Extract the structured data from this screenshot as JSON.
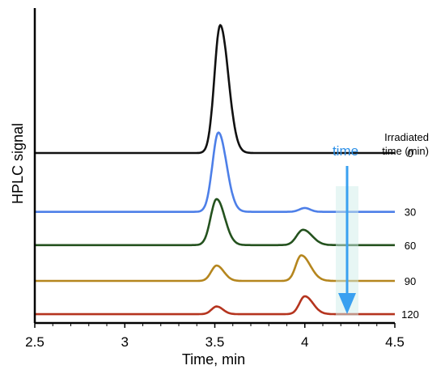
{
  "chart_data": {
    "type": "line",
    "xlabel": "Time, min",
    "ylabel": "HPLC signal",
    "xlim": [
      2.5,
      4.5
    ],
    "x_ticks": [
      "2.5",
      "3",
      "3.5",
      "4",
      "4.5"
    ],
    "x_tick_values": [
      2.5,
      3,
      3.5,
      4,
      4.5
    ],
    "legend_title_line1": "Irradiated",
    "legend_title_line2": "time (min)",
    "arrow_label": "time",
    "colors": {
      "arrow": "#3aa0f0",
      "arrow_label": "#2a8ee6"
    },
    "series": [
      {
        "name": "0",
        "color": "#111111",
        "baseline": 0,
        "peaks": [
          {
            "x": 3.53,
            "height": 100,
            "width": 0.032,
            "tail": 0.045
          }
        ]
      },
      {
        "name": "30",
        "color": "#4d7fe8",
        "baseline": -46,
        "peaks": [
          {
            "x": 3.52,
            "height": 62,
            "width": 0.033,
            "tail": 0.045
          },
          {
            "x": 4.0,
            "height": 3,
            "width": 0.03,
            "tail": 0.03
          }
        ]
      },
      {
        "name": "60",
        "color": "#24521e",
        "baseline": -72,
        "peaks": [
          {
            "x": 3.51,
            "height": 36,
            "width": 0.033,
            "tail": 0.045
          },
          {
            "x": 3.99,
            "height": 12,
            "width": 0.035,
            "tail": 0.05
          }
        ]
      },
      {
        "name": "90",
        "color": "#b5861e",
        "baseline": -100,
        "peaks": [
          {
            "x": 3.51,
            "height": 12,
            "width": 0.03,
            "tail": 0.04
          },
          {
            "x": 3.98,
            "height": 20,
            "width": 0.03,
            "tail": 0.05
          }
        ]
      },
      {
        "name": "120",
        "color": "#b5341e",
        "baseline": -126,
        "peaks": [
          {
            "x": 3.51,
            "height": 6,
            "width": 0.028,
            "tail": 0.035
          },
          {
            "x": 4.0,
            "height": 14,
            "width": 0.03,
            "tail": 0.045
          }
        ]
      }
    ]
  }
}
